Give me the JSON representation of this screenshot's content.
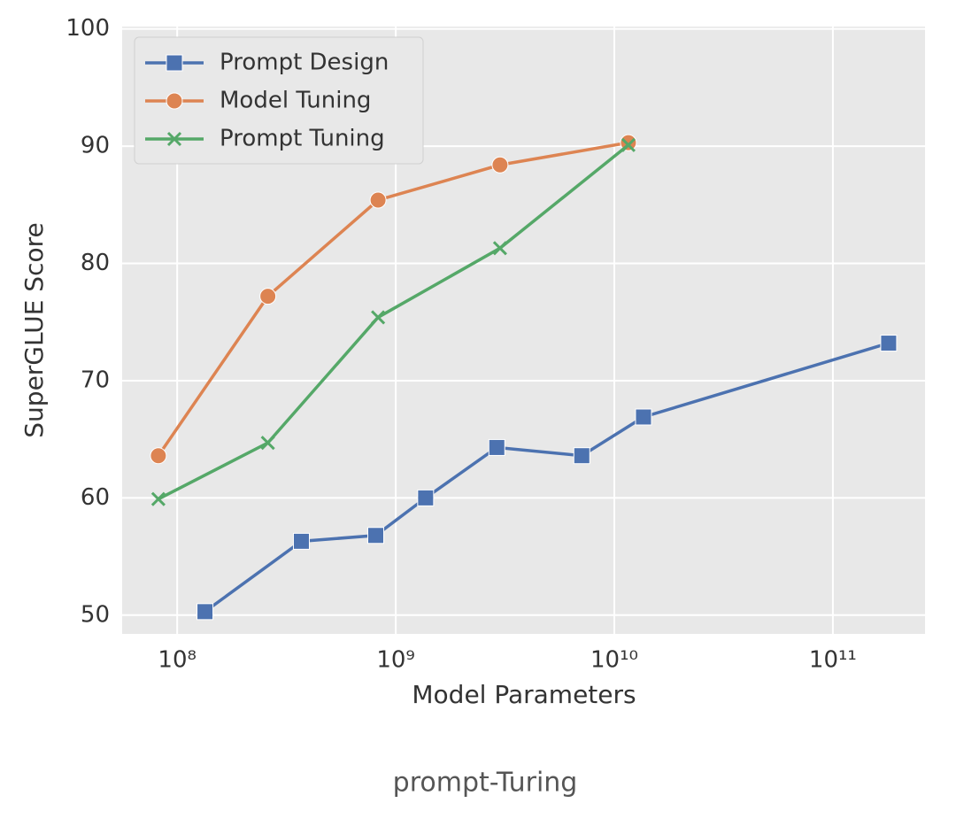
{
  "chart_data": {
    "type": "line",
    "xscale": "log",
    "grid": true,
    "legend": "upper left",
    "x_label": "Model Parameters",
    "y_label": "SuperGLUE Score",
    "xlim": [
      56000000,
      264000000000
    ],
    "ylim": [
      48.4,
      100.2
    ],
    "xticks": [
      {
        "value": 100000000,
        "label": "10⁸"
      },
      {
        "value": 1000000000,
        "label": "10⁹"
      },
      {
        "value": 10000000000,
        "label": "10¹⁰"
      },
      {
        "value": 100000000000,
        "label": "10¹¹"
      }
    ],
    "yticks": [
      50,
      60,
      70,
      80,
      90,
      100
    ],
    "series": [
      {
        "name": "Prompt Design",
        "color": "#4c72b0",
        "marker": "square",
        "x": [
          134000000,
          370000000,
          810000000,
          1370000000,
          2900000000,
          7100000000,
          13600000000,
          180000000000
        ],
        "values": [
          50.3,
          56.3,
          56.8,
          60.0,
          64.3,
          63.6,
          66.9,
          73.2
        ]
      },
      {
        "name": "Model Tuning",
        "color": "#dd8452",
        "marker": "circle",
        "x": [
          82000000,
          260000000,
          830000000,
          3000000000,
          11600000000
        ],
        "values": [
          63.6,
          77.2,
          85.4,
          88.4,
          90.3
        ]
      },
      {
        "name": "Prompt Tuning",
        "color": "#55a868",
        "marker": "x",
        "x": [
          82000000,
          260000000,
          830000000,
          3000000000,
          11600000000
        ],
        "values": [
          59.9,
          64.7,
          75.4,
          81.3,
          90.1
        ]
      }
    ]
  },
  "caption": "prompt-Turing"
}
